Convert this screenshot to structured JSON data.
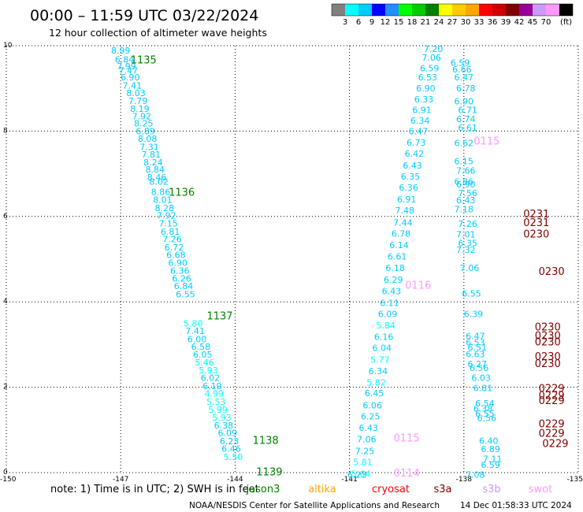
{
  "header": {
    "title": "00:00 – 11:59 UTC 03/22/2024",
    "subtitle": "12 hour collection of altimeter wave heights",
    "unit": "(ft)"
  },
  "colorbar": {
    "colors": [
      "#808080",
      "#00ffff",
      "#00ccff",
      "#0000ff",
      "#1e90ff",
      "#00ff00",
      "#00cc00",
      "#008000",
      "#ffff00",
      "#ffcc00",
      "#ffa500",
      "#ff0000",
      "#cc0000",
      "#800000",
      "#990099",
      "#cc99ff",
      "#ff99ff",
      "#000000"
    ],
    "labels": [
      "3",
      "6",
      "9",
      "12",
      "15",
      "18",
      "21",
      "24",
      "27",
      "30",
      "33",
      "36",
      "39",
      "42",
      "45",
      "70"
    ]
  },
  "footer": {
    "note": "note:  1) Time is in UTC; 2) SWH is in feet",
    "satellites": [
      {
        "name": "jason3",
        "color": "#008000"
      },
      {
        "name": "altika",
        "color": "#ffa500"
      },
      {
        "name": "cryosat",
        "color": "#ff0000"
      },
      {
        "name": "s3a",
        "color": "#800000"
      },
      {
        "name": "s3b",
        "color": "#cc99ff"
      },
      {
        "name": "swot",
        "color": "#ff99ff"
      }
    ],
    "credit": "NOAA/NESDIS Center for Satellite Applications and Research",
    "timestamp": "14 Dec 01:58:33 UTC 2024"
  },
  "chart_data": {
    "type": "scatter",
    "xlim": [
      -150,
      -135
    ],
    "ylim": [
      0,
      10
    ],
    "xticks": [
      "-150",
      "-147",
      "-144",
      "-141",
      "-138",
      "-135"
    ],
    "yticks": [
      "0",
      "2",
      "4",
      "6",
      "8",
      "10"
    ],
    "grid": true,
    "series": [
      {
        "name": "jason3",
        "points": [
          [
            -147.0,
            9.89,
            8.99
          ],
          [
            -146.9,
            9.68,
            6.84
          ],
          [
            -146.85,
            9.52,
            7.99
          ],
          [
            -146.8,
            9.42,
            7.47
          ],
          [
            -146.75,
            9.26,
            6.9
          ],
          [
            -146.7,
            9.07,
            7.41
          ],
          [
            -146.6,
            8.89,
            8.03
          ],
          [
            -146.55,
            8.71,
            7.79
          ],
          [
            -146.5,
            8.52,
            8.19
          ],
          [
            -146.45,
            8.35,
            7.92
          ],
          [
            -146.4,
            8.18,
            8.25
          ],
          [
            -146.35,
            8.0,
            6.89
          ],
          [
            -146.3,
            7.82,
            8.08
          ],
          [
            -146.25,
            7.63,
            7.31
          ],
          [
            -146.2,
            7.45,
            7.81
          ],
          [
            -146.15,
            7.27,
            8.24
          ],
          [
            -146.1,
            7.1,
            8.84
          ],
          [
            -146.05,
            6.92,
            8.46
          ],
          [
            -146.0,
            6.82,
            8.02
          ],
          [
            -145.95,
            6.58,
            8.86
          ],
          [
            -145.9,
            6.39,
            8.01
          ],
          [
            -145.85,
            6.2,
            8.28
          ],
          [
            -145.8,
            6.02,
            7.92
          ],
          [
            -145.75,
            5.84,
            7.15
          ],
          [
            -145.7,
            5.65,
            6.81
          ],
          [
            -145.65,
            5.47,
            7.26
          ],
          [
            -145.6,
            5.28,
            6.72
          ],
          [
            -145.55,
            5.1,
            6.68
          ],
          [
            -145.5,
            4.92,
            6.9
          ],
          [
            -145.45,
            4.73,
            6.36
          ],
          [
            -145.4,
            4.55,
            6.26
          ],
          [
            -145.35,
            4.37,
            6.84
          ],
          [
            -145.3,
            4.18,
            6.55
          ],
          [
            -145.1,
            3.5,
            5.8
          ],
          [
            -145.05,
            3.32,
            7.41
          ],
          [
            -145.0,
            3.13,
            6.0
          ],
          [
            -144.9,
            2.95,
            6.58
          ],
          [
            -144.85,
            2.77,
            6.05
          ],
          [
            -144.8,
            2.58,
            5.46
          ],
          [
            -144.7,
            2.4,
            5.93
          ],
          [
            -144.65,
            2.22,
            6.02
          ],
          [
            -144.6,
            2.03,
            6.19
          ],
          [
            -144.55,
            1.85,
            4.99
          ],
          [
            -144.5,
            1.66,
            5.53
          ],
          [
            -144.45,
            1.48,
            5.99
          ],
          [
            -144.35,
            1.29,
            5.93
          ],
          [
            -144.3,
            1.11,
            6.38
          ],
          [
            -144.2,
            0.93,
            6.09
          ],
          [
            -144.15,
            0.74,
            6.23
          ],
          [
            -144.1,
            0.56,
            6.46
          ],
          [
            -144.05,
            0.37,
            5.5
          ]
        ],
        "labels": [
          [
            -146.4,
            9.68,
            "1135"
          ],
          [
            -145.4,
            6.58,
            "1136"
          ],
          [
            -144.4,
            3.68,
            "1137"
          ],
          [
            -143.2,
            0.77,
            "1138"
          ],
          [
            -143.1,
            0.03,
            "1139"
          ]
        ]
      },
      {
        "name": "cryosat",
        "points": [
          [
            -138.8,
            9.93,
            7.2
          ],
          [
            -138.85,
            9.72,
            7.06
          ],
          [
            -138.9,
            9.47,
            6.59
          ],
          [
            -138.95,
            9.26,
            6.53
          ],
          [
            -139.0,
            9.0,
            6.9
          ],
          [
            -139.05,
            8.75,
            6.33
          ],
          [
            -139.1,
            8.5,
            6.91
          ],
          [
            -139.15,
            8.25,
            6.34
          ],
          [
            -139.2,
            8.0,
            6.47
          ],
          [
            -139.25,
            7.73,
            6.73
          ],
          [
            -139.3,
            7.47,
            6.42
          ],
          [
            -139.35,
            7.2,
            6.43
          ],
          [
            -139.4,
            6.94,
            6.35
          ],
          [
            -139.45,
            6.68,
            6.36
          ],
          [
            -139.5,
            6.4,
            6.91
          ],
          [
            -139.55,
            6.14,
            7.48
          ],
          [
            -139.6,
            5.86,
            7.44
          ],
          [
            -139.65,
            5.6,
            6.78
          ],
          [
            -139.7,
            5.33,
            6.14
          ],
          [
            -139.75,
            5.06,
            6.61
          ],
          [
            -139.8,
            4.8,
            6.18
          ],
          [
            -139.85,
            4.52,
            6.29
          ],
          [
            -139.9,
            4.25,
            6.43
          ],
          [
            -139.95,
            3.98,
            6.11
          ],
          [
            -140.0,
            3.72,
            6.09
          ],
          [
            -140.05,
            3.45,
            5.84
          ],
          [
            -140.1,
            3.18,
            6.16
          ],
          [
            -140.15,
            2.92,
            6.04
          ],
          [
            -140.2,
            2.65,
            5.77
          ],
          [
            -140.25,
            2.38,
            6.34
          ],
          [
            -140.3,
            2.11,
            5.82
          ],
          [
            -140.35,
            1.86,
            6.45
          ],
          [
            -140.4,
            1.58,
            6.06
          ],
          [
            -140.45,
            1.32,
            6.25
          ],
          [
            -140.5,
            1.05,
            6.43
          ],
          [
            -140.55,
            0.78,
            7.06
          ],
          [
            -140.6,
            0.51,
            7.25
          ],
          [
            -140.65,
            0.25,
            5.81
          ],
          [
            -140.7,
            -0.03,
            5.64
          ]
        ]
      },
      {
        "name": "s3a",
        "points": [
          [
            -138.1,
            9.6,
            6.59
          ],
          [
            -138.05,
            9.45,
            6.66
          ],
          [
            -138.0,
            9.26,
            6.47
          ],
          [
            -137.95,
            9.0,
            6.78
          ],
          [
            -138.0,
            8.7,
            6.9
          ],
          [
            -137.9,
            8.5,
            6.71
          ],
          [
            -137.95,
            8.28,
            6.74
          ],
          [
            -137.9,
            8.08,
            6.61
          ],
          [
            -138.0,
            7.72,
            6.62
          ],
          [
            -138.0,
            7.3,
            6.15
          ],
          [
            -137.95,
            7.08,
            7.66
          ],
          [
            -138.0,
            6.82,
            6.86
          ],
          [
            -137.95,
            6.75,
            6.9
          ],
          [
            -137.9,
            6.55,
            7.56
          ],
          [
            -137.95,
            6.38,
            6.43
          ],
          [
            -138.0,
            6.17,
            7.18
          ],
          [
            -137.9,
            5.83,
            7.26
          ],
          [
            -137.95,
            5.58,
            7.01
          ],
          [
            -137.9,
            5.38,
            6.35
          ],
          [
            -137.95,
            5.22,
            7.32
          ],
          [
            -137.85,
            4.8,
            7.06
          ],
          [
            -137.8,
            4.2,
            6.55
          ],
          [
            -137.75,
            3.72,
            6.39
          ],
          [
            -137.7,
            3.2,
            6.47
          ],
          [
            -137.7,
            3.05,
            6.53
          ],
          [
            -137.65,
            2.93,
            6.51
          ],
          [
            -137.7,
            2.78,
            6.63
          ],
          [
            -137.65,
            2.55,
            6.27
          ],
          [
            -137.6,
            2.45,
            6.56
          ],
          [
            -137.55,
            2.22,
            6.03
          ],
          [
            -137.5,
            1.98,
            6.81
          ],
          [
            -137.45,
            1.62,
            6.54
          ],
          [
            -137.5,
            1.5,
            6.38
          ],
          [
            -137.45,
            1.38,
            6.55
          ],
          [
            -137.4,
            1.28,
            6.56
          ],
          [
            -137.35,
            0.75,
            6.4
          ],
          [
            -137.3,
            0.55,
            6.89
          ],
          [
            -137.25,
            0.32,
            7.11
          ],
          [
            -137.3,
            0.18,
            6.59
          ]
        ],
        "labels": [
          [
            -136.1,
            6.07,
            "0231"
          ],
          [
            -136.1,
            5.87,
            "0231"
          ],
          [
            -136.1,
            5.6,
            "0230"
          ],
          [
            -135.7,
            4.72,
            "0230"
          ],
          [
            -135.8,
            3.42,
            "0230"
          ],
          [
            -135.8,
            3.22,
            "0230"
          ],
          [
            -135.8,
            3.07,
            "0230"
          ],
          [
            -135.8,
            2.73,
            "0230"
          ],
          [
            -135.8,
            2.56,
            "0230"
          ],
          [
            -135.7,
            1.98,
            "0229"
          ],
          [
            -135.7,
            1.82,
            "0229"
          ],
          [
            -135.7,
            1.7,
            "0229"
          ],
          [
            -135.7,
            1.15,
            "0229"
          ],
          [
            -135.7,
            0.93,
            "0229"
          ],
          [
            -135.6,
            0.69,
            "0229"
          ]
        ]
      },
      {
        "name": "swot",
        "points": [
          [
            -140.8,
            -0.05,
            6.23
          ],
          [
            -137.7,
            -0.05,
            7.08
          ]
        ],
        "labels": [
          [
            -137.4,
            7.78,
            "0115"
          ],
          [
            -139.2,
            4.4,
            "0116"
          ],
          [
            -139.5,
            0.82,
            "0115"
          ],
          [
            -139.5,
            0.0,
            "0114"
          ]
        ]
      }
    ]
  }
}
